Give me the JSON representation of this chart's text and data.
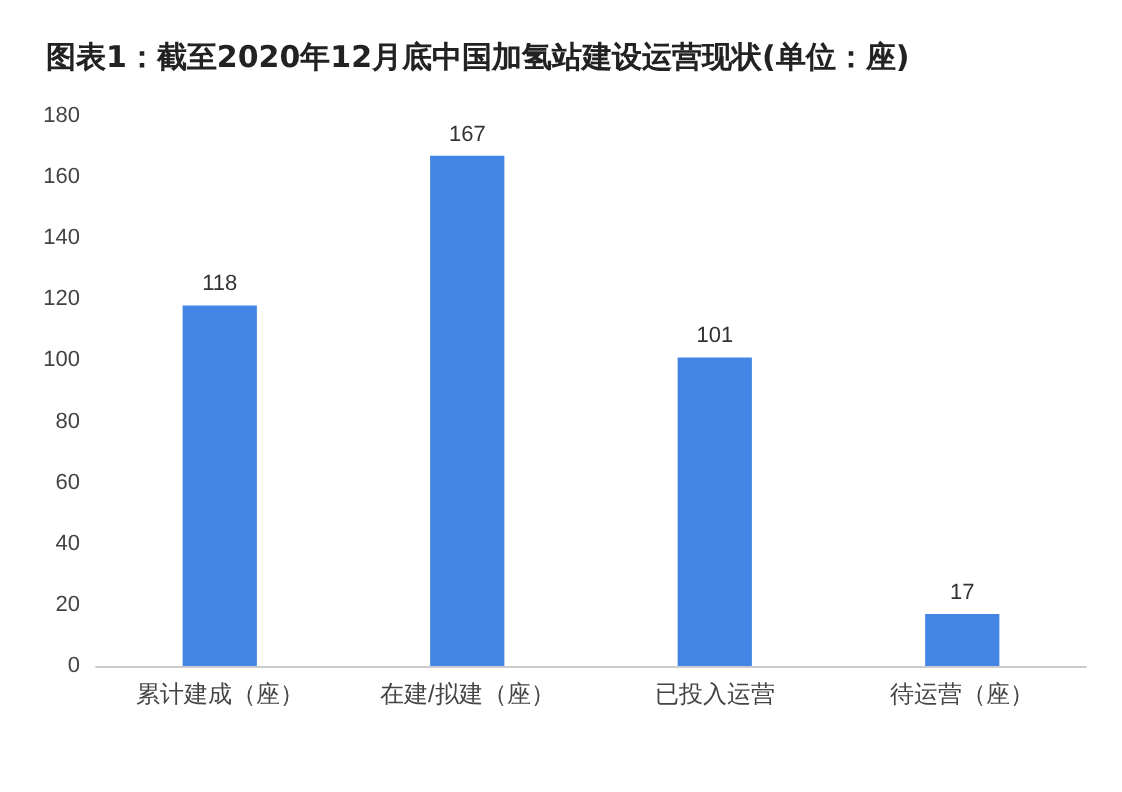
{
  "chart_data": {
    "type": "bar",
    "title": "图表1：截至2020年12月底中国加氢站建设运营现状(单位：座)",
    "categories": [
      "累计建成（座）",
      "在建/拟建（座）",
      "已投入运营",
      "待运营（座）"
    ],
    "values": [
      118,
      167,
      101,
      17
    ],
    "color": "#4285e4",
    "ylim": [
      0,
      180
    ],
    "yticks": [
      0,
      20,
      40,
      60,
      80,
      100,
      120,
      140,
      160,
      180
    ],
    "data_labels": true,
    "grid": false
  }
}
